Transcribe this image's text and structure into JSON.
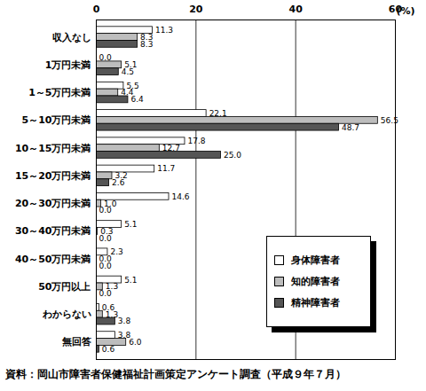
{
  "chart_data": {
    "type": "bar",
    "orientation": "horizontal",
    "categories": [
      "収入なし",
      "1万円未満",
      "1～5万円未満",
      "5～10万円未満",
      "10～15万円未満",
      "15～20万円未満",
      "20～30万円未満",
      "30～40万円未満",
      "40～50万円未満",
      "50万円以上",
      "わからない",
      "無回答"
    ],
    "series": [
      {
        "name": "身体障害者",
        "color": "#ffffff",
        "values": [
          11.3,
          0.0,
          5.5,
          22.1,
          17.8,
          11.7,
          14.6,
          5.1,
          2.3,
          5.1,
          0.6,
          3.8
        ],
        "value_labels": [
          "11.3",
          "0.0",
          "5.5",
          "22.1",
          "17.8",
          "11.7",
          "14.6",
          "5.1",
          "2.3",
          "5.1",
          "0.6",
          "3.8"
        ]
      },
      {
        "name": "知的障害者",
        "color": "#bdbdbd",
        "values": [
          8.3,
          5.1,
          4.4,
          56.5,
          12.7,
          3.2,
          1.0,
          0.3,
          0.0,
          1.3,
          1.3,
          6.0
        ],
        "value_labels": [
          "8.3",
          "5.1",
          "4.4",
          "56.5",
          "12.7",
          "3.2",
          "1.0",
          "0.3",
          "0.0",
          "1.3",
          "1.3",
          "6.0"
        ]
      },
      {
        "name": "精神障害者",
        "color": "#555555",
        "values": [
          8.3,
          4.5,
          6.4,
          48.7,
          25.0,
          2.6,
          0.0,
          0.0,
          0.0,
          0.0,
          3.8,
          0.6
        ],
        "value_labels": [
          "8.3",
          "4.5",
          "6.4",
          "48.7",
          "25.0",
          "2.6",
          "0.0",
          "0.0",
          "0.0",
          "0.0",
          "3.8",
          "0.6"
        ]
      }
    ],
    "xlim": [
      0,
      60
    ],
    "xticks": [
      0,
      20,
      40,
      60
    ],
    "xlabel": "(%)",
    "grid": true,
    "data_labels": true,
    "legend": "bottom-right",
    "caption": "資料：岡山市障害者保健福祉計画策定アンケート調査（平成９年７月）"
  }
}
